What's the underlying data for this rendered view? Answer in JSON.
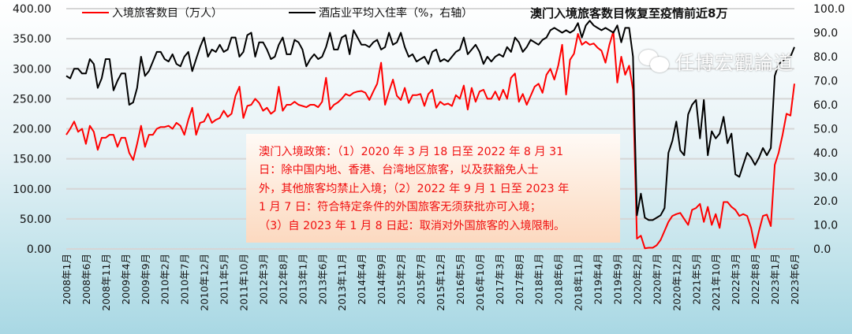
{
  "chart_data": {
    "type": "line",
    "title": "澳门入境旅客数目恢复至疫情前近8万",
    "x_tick_labels": [
      "2008年1月",
      "2008年6月",
      "2008年11月",
      "2009年4月",
      "2009年9月",
      "2010年2月",
      "2010年7月",
      "2010年12月",
      "2011年5月",
      "2011年10月",
      "2012年3月",
      "2012年8月",
      "2013年1月",
      "2013年6月",
      "2013年11月",
      "2014年4月",
      "2014年9月",
      "2015年2月",
      "2015年7月",
      "2015年12月",
      "2016年5月",
      "2016年10月",
      "2017年3月",
      "2017年8月",
      "2018年1月",
      "2018年6月",
      "2018年11月",
      "2019年4月",
      "2019年9月",
      "2020年2月",
      "2020年7月",
      "2020年12月",
      "2021年5月",
      "2021年10月",
      "2022年3月",
      "2022年8月",
      "2023年1月",
      "2023年6月"
    ],
    "x_range": [
      "2008年1月",
      "2023年6月"
    ],
    "left_axis": {
      "ylim": [
        0,
        400
      ],
      "ticks": [
        "0.00",
        "50.00",
        "100.00",
        "150.00",
        "200.00",
        "250.00",
        "300.00",
        "350.00",
        "400.00"
      ]
    },
    "right_axis": {
      "ylim": [
        0,
        100
      ],
      "ticks": [
        "0.0",
        "10.0",
        "20.0",
        "30.0",
        "40.0",
        "50.0",
        "60.0",
        "70.0",
        "80.0",
        "90.0",
        "100.0"
      ]
    },
    "grid": true,
    "legend_position": "top",
    "series": [
      {
        "name": "入境旅客数目（万人）",
        "axis": "left",
        "color": "#ff0000",
        "values": [
          190,
          200,
          212,
          195,
          200,
          175,
          205,
          195,
          165,
          185,
          185,
          190,
          190,
          170,
          185,
          185,
          160,
          148,
          175,
          205,
          170,
          190,
          190,
          200,
          203,
          203,
          205,
          200,
          210,
          205,
          190,
          215,
          235,
          190,
          210,
          212,
          225,
          210,
          215,
          218,
          230,
          220,
          225,
          255,
          270,
          218,
          238,
          240,
          250,
          243,
          230,
          235,
          225,
          230,
          270,
          230,
          240,
          240,
          245,
          240,
          238,
          236,
          240,
          240,
          236,
          245,
          285,
          232,
          240,
          244,
          250,
          258,
          255,
          260,
          262,
          263,
          260,
          248,
          262,
          275,
          310,
          240,
          262,
          282,
          255,
          248,
          268,
          243,
          256,
          256,
          258,
          238,
          258,
          265,
          235,
          245,
          240,
          242,
          238,
          256,
          250,
          272,
          232,
          268,
          245,
          262,
          265,
          250,
          250,
          262,
          248,
          265,
          250,
          285,
          292,
          245,
          258,
          240,
          255,
          270,
          275,
          260,
          290,
          300,
          282,
          305,
          340,
          257,
          315,
          325,
          358,
          340,
          345,
          340,
          342,
          335,
          330,
          310,
          340,
          362,
          277,
          320,
          290,
          305,
          265,
          17,
          22,
          1,
          2,
          2,
          6,
          15,
          30,
          45,
          55,
          58,
          60,
          50,
          40,
          65,
          68,
          75,
          45,
          70,
          40,
          58,
          35,
          78,
          78,
          70,
          65,
          55,
          58,
          55,
          35,
          2,
          30,
          55,
          57,
          38,
          140,
          160,
          190,
          225,
          222,
          275
        ]
      },
      {
        "name": "酒店业平均入住率（%，右轴）",
        "axis": "right",
        "color": "#000000",
        "values": [
          72,
          71,
          75,
          75,
          73,
          73,
          79,
          77,
          67,
          71,
          79,
          79,
          66,
          70,
          73,
          73,
          60,
          61,
          67,
          80,
          72,
          74,
          78,
          82,
          82,
          79,
          78,
          81,
          77,
          76,
          80,
          82,
          74,
          79,
          84,
          88,
          80,
          83,
          82,
          85,
          82,
          83,
          88,
          88,
          80,
          82,
          89,
          90,
          80,
          86,
          86,
          83,
          79,
          80,
          85,
          88,
          81,
          81,
          87,
          86,
          83,
          76,
          79,
          81,
          79,
          80,
          84,
          90,
          83,
          83,
          88,
          89,
          81,
          91,
          88,
          85,
          85,
          84,
          86,
          87,
          83,
          84,
          90,
          85,
          86,
          90,
          84,
          80,
          81,
          78,
          79,
          80,
          77,
          82,
          83,
          78,
          79,
          78,
          80,
          82,
          83,
          88,
          81,
          83,
          85,
          82,
          77,
          80,
          78,
          80,
          81,
          80,
          84,
          82,
          88,
          86,
          82,
          84,
          87,
          86,
          85,
          87,
          88,
          91,
          92,
          91,
          90,
          91,
          90,
          91,
          94,
          88,
          93,
          95,
          93,
          92,
          91,
          92,
          91,
          90,
          93,
          86,
          92,
          92,
          80,
          14,
          23,
          13,
          12,
          12,
          13,
          14,
          17,
          40,
          45,
          53,
          41,
          39,
          56,
          60,
          62,
          46,
          62,
          39,
          49,
          46,
          48,
          55,
          44,
          48,
          31,
          30,
          35,
          40,
          38,
          35,
          38,
          42,
          39,
          42,
          72,
          77,
          78,
          80,
          80,
          84
        ]
      }
    ],
    "annotation": [
      "澳门入境政策：（1）2020 年 3 月 18 日至 2022 年 8 月 31",
      "日：除中国内地、香港、台湾地区旅客，以及获豁免人士",
      "外，其他旅客均禁止入境；（2）2022 年 9 月 1 日至 2023 年",
      "1 月 7 日：符合特定条件的外国旅客无须获批亦可入境；",
      "（3）自 2023 年 1 月 8 日起：取消对外国旅客的入境限制。"
    ]
  },
  "watermark": {
    "text": "任博宏觀論道",
    "icon": "wechat-icon"
  }
}
